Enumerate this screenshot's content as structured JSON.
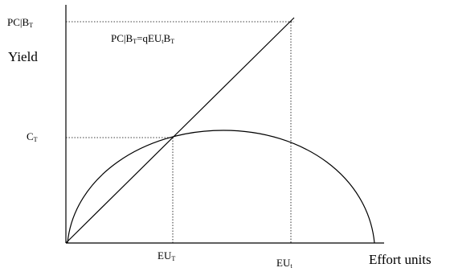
{
  "axes": {
    "y_label": "Yield",
    "x_label": "Effort units"
  },
  "labels": {
    "pc_bt": {
      "main": "PC|B",
      "sub": "T"
    },
    "ct": {
      "main": "C",
      "sub": "T"
    },
    "eu_T": {
      "main": "EU",
      "sub": "T"
    },
    "eu_t": {
      "main": "EU",
      "sub": "t"
    }
  },
  "equation": {
    "part1": "PC|B",
    "sub1": "T",
    "part2": "=qEU",
    "sub2": "t",
    "part3": "B",
    "sub3": "T"
  },
  "colors": {
    "line": "#000000",
    "background": "#ffffff"
  }
}
